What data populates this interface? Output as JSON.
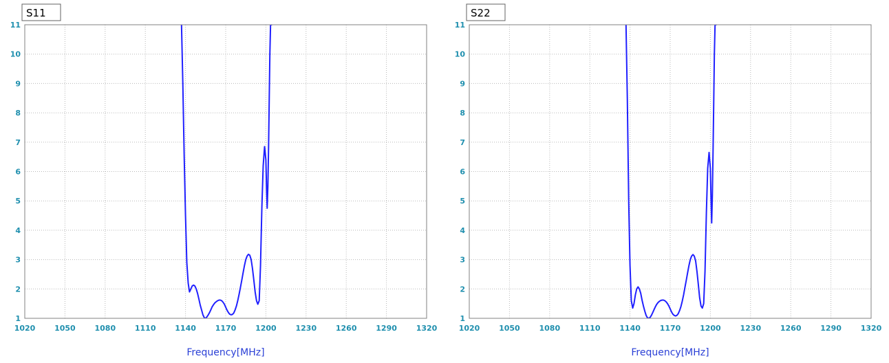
{
  "charts": [
    {
      "title": "S11",
      "xlabel": "Frequency[MHz]",
      "chart_data": {
        "type": "line",
        "title": "S11",
        "xlabel": "Frequency[MHz]",
        "ylabel": "",
        "xlim": [
          1020,
          1320
        ],
        "ylim": [
          1,
          11
        ],
        "x_ticks": [
          "1020",
          "1050",
          "1080",
          "1110",
          "1140",
          "1170",
          "1200",
          "1230",
          "1260",
          "1290",
          "1320"
        ],
        "y_ticks": [
          "1",
          "2",
          "3",
          "4",
          "5",
          "6",
          "7",
          "8",
          "9",
          "10",
          "11"
        ],
        "grid": true,
        "line_color": "#2020ff",
        "series": [
          {
            "x": [
              1137.0,
              1138.0,
              1139.0,
              1140.0,
              1141.0,
              1142.0,
              1143.0,
              1144.0,
              1145.0,
              1146.0,
              1147.0,
              1148.0,
              1149.0,
              1150.0,
              1151.0,
              1152.0,
              1153.0,
              1154.0,
              1155.0,
              1156.0,
              1157.0,
              1158.0,
              1159.0,
              1160.0,
              1161.0,
              1162.0,
              1163.0,
              1164.0,
              1165.0,
              1166.0,
              1167.0,
              1168.0,
              1169.0,
              1170.0,
              1171.0,
              1172.0,
              1173.0,
              1174.0,
              1175.0,
              1176.0,
              1177.0,
              1178.0,
              1179.0,
              1180.0,
              1181.0,
              1182.0,
              1183.0,
              1184.0,
              1185.0,
              1186.0,
              1187.0,
              1188.0,
              1189.0,
              1190.0,
              1191.0,
              1192.0,
              1193.0,
              1194.0,
              1195.0,
              1196.0,
              1197.0,
              1198.0,
              1199.0,
              1200.0,
              1200.5,
              1201.0,
              1201.5,
              1202.0,
              1202.5,
              1203.0,
              1203.5,
              1204.0,
              1204.3,
              1204.6
            ],
            "y": [
              11.0,
              9.0,
              6.5,
              4.5,
              2.9,
              2.2,
              1.9,
              2.0,
              2.1,
              2.13,
              2.1,
              2.0,
              1.85,
              1.65,
              1.45,
              1.28,
              1.12,
              1.02,
              1.0,
              1.05,
              1.12,
              1.2,
              1.3,
              1.4,
              1.47,
              1.53,
              1.57,
              1.6,
              1.62,
              1.62,
              1.6,
              1.55,
              1.48,
              1.38,
              1.28,
              1.2,
              1.14,
              1.12,
              1.13,
              1.18,
              1.28,
              1.42,
              1.6,
              1.82,
              2.05,
              2.3,
              2.55,
              2.8,
              3.0,
              3.12,
              3.18,
              3.15,
              3.0,
              2.7,
              2.3,
              1.9,
              1.6,
              1.48,
              1.6,
              2.8,
              4.8,
              6.2,
              6.85,
              6.4,
              5.4,
              4.75,
              5.5,
              6.8,
              8.5,
              10.0,
              11.0,
              11.0,
              11.0,
              11.0
            ]
          }
        ]
      }
    },
    {
      "title": "S22",
      "xlabel": "Frequency[MHz]",
      "chart_data": {
        "type": "line",
        "title": "S22",
        "xlabel": "Frequency[MHz]",
        "ylabel": "",
        "xlim": [
          1020,
          1320
        ],
        "ylim": [
          1,
          11
        ],
        "x_ticks": [
          "1020",
          "1050",
          "1080",
          "1110",
          "1140",
          "1170",
          "1200",
          "1230",
          "1260",
          "1290",
          "1320"
        ],
        "y_ticks": [
          "1",
          "2",
          "3",
          "4",
          "5",
          "6",
          "7",
          "8",
          "9",
          "10",
          "11"
        ],
        "grid": true,
        "line_color": "#2020ff",
        "series": [
          {
            "x": [
              1137.0,
              1138.0,
              1139.0,
              1140.0,
              1141.0,
              1142.0,
              1143.0,
              1144.0,
              1145.0,
              1146.0,
              1147.0,
              1148.0,
              1149.0,
              1150.0,
              1151.0,
              1152.0,
              1153.0,
              1154.0,
              1155.0,
              1156.0,
              1157.0,
              1158.0,
              1159.0,
              1160.0,
              1161.0,
              1162.0,
              1163.0,
              1164.0,
              1165.0,
              1166.0,
              1167.0,
              1168.0,
              1169.0,
              1170.0,
              1171.0,
              1172.0,
              1173.0,
              1174.0,
              1175.0,
              1176.0,
              1177.0,
              1178.0,
              1179.0,
              1180.0,
              1181.0,
              1182.0,
              1183.0,
              1184.0,
              1185.0,
              1186.0,
              1187.0,
              1188.0,
              1189.0,
              1190.0,
              1191.0,
              1192.0,
              1193.0,
              1194.0,
              1195.0,
              1196.0,
              1197.0,
              1198.0,
              1199.0,
              1200.0,
              1200.5,
              1201.0,
              1201.5,
              1202.0,
              1202.5,
              1203.0,
              1203.5,
              1204.0,
              1204.3,
              1204.6
            ],
            "y": [
              11.0,
              8.5,
              5.0,
              2.8,
              1.6,
              1.35,
              1.5,
              1.8,
              2.0,
              2.07,
              2.0,
              1.85,
              1.62,
              1.42,
              1.25,
              1.1,
              1.02,
              1.0,
              1.03,
              1.1,
              1.2,
              1.3,
              1.4,
              1.48,
              1.54,
              1.58,
              1.61,
              1.62,
              1.62,
              1.6,
              1.56,
              1.5,
              1.42,
              1.32,
              1.22,
              1.14,
              1.1,
              1.08,
              1.1,
              1.16,
              1.26,
              1.4,
              1.58,
              1.8,
              2.05,
              2.3,
              2.55,
              2.8,
              3.0,
              3.12,
              3.17,
              3.12,
              2.95,
              2.6,
              2.15,
              1.7,
              1.42,
              1.35,
              1.5,
              2.6,
              4.6,
              6.1,
              6.65,
              6.1,
              5.0,
              4.25,
              5.2,
              6.7,
              8.4,
              10.0,
              11.0,
              11.0,
              11.0,
              11.0
            ]
          }
        ]
      }
    }
  ]
}
